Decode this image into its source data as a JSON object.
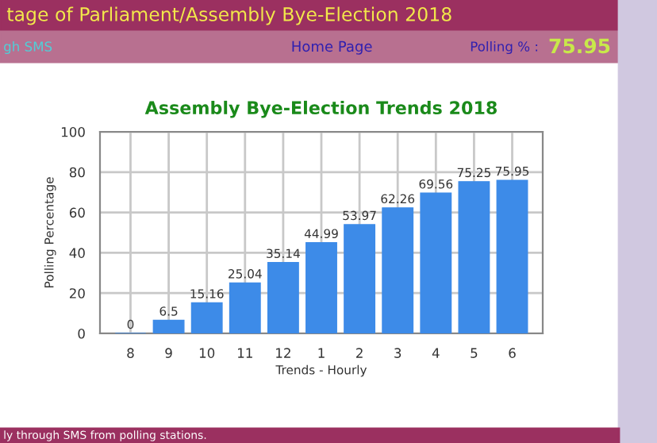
{
  "chart_data": {
    "type": "bar",
    "title": "Assembly Bye-Election Trends 2018",
    "xlabel": "Trends - Hourly",
    "ylabel": "Polling Percentage",
    "categories": [
      "8",
      "9",
      "10",
      "11",
      "12",
      "1",
      "2",
      "3",
      "4",
      "5",
      "6"
    ],
    "values": [
      0,
      6.5,
      15.16,
      25.04,
      35.14,
      44.99,
      53.97,
      62.26,
      69.56,
      75.25,
      75.95
    ],
    "color": "#3d8be8",
    "ylim": [
      0,
      100
    ],
    "yticks": [
      0,
      20,
      40,
      60,
      80,
      100
    ],
    "grid": true,
    "data_labels": true,
    "annotations": [
      "tage of Parliament/Assembly Bye-Election 2018",
      "gh SMS",
      "Home Page",
      "Polling % :",
      "75.95",
      "ly through SMS from polling stations."
    ]
  }
}
